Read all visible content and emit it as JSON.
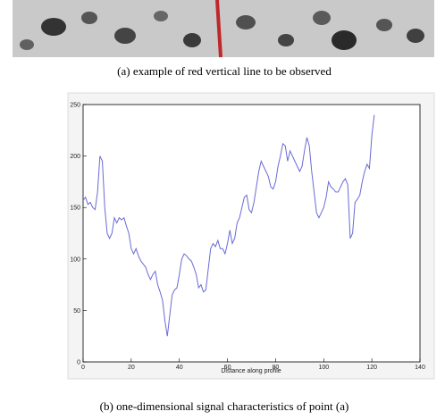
{
  "captions": {
    "a": "(a) example of red vertical line to be observed",
    "b": "(b) one-dimensional signal characteristics of point (a)"
  },
  "chart_data": {
    "type": "line",
    "xlabel": "Distance along profile",
    "x": [
      0,
      1,
      2,
      3,
      4,
      5,
      6,
      7,
      8,
      9,
      10,
      11,
      12,
      13,
      14,
      15,
      16,
      17,
      18,
      19,
      20,
      21,
      22,
      23,
      24,
      25,
      26,
      27,
      28,
      29,
      30,
      31,
      32,
      33,
      34,
      35,
      36,
      37,
      38,
      39,
      40,
      41,
      42,
      43,
      44,
      45,
      46,
      47,
      48,
      49,
      50,
      51,
      52,
      53,
      54,
      55,
      56,
      57,
      58,
      59,
      60,
      61,
      62,
      63,
      64,
      65,
      66,
      67,
      68,
      69,
      70,
      71,
      72,
      73,
      74,
      75,
      76,
      77,
      78,
      79,
      80,
      81,
      82,
      83,
      84,
      85,
      86,
      87,
      88,
      89,
      90,
      91,
      92,
      93,
      94,
      95,
      96,
      97,
      98,
      99,
      100,
      101,
      102,
      103,
      104,
      105,
      106,
      107,
      108,
      109,
      110,
      111,
      112,
      113,
      114,
      115,
      116,
      117,
      118,
      119,
      120,
      121
    ],
    "series": [
      {
        "color": "#6a6ad8",
        "values": [
          157,
          160,
          153,
          155,
          150,
          148,
          165,
          200,
          195,
          150,
          125,
          120,
          125,
          140,
          135,
          140,
          138,
          140,
          132,
          125,
          110,
          105,
          110,
          103,
          98,
          95,
          92,
          85,
          80,
          85,
          88,
          75,
          68,
          60,
          40,
          25,
          45,
          65,
          70,
          72,
          85,
          100,
          105,
          103,
          100,
          98,
          92,
          85,
          72,
          75,
          68,
          70,
          90,
          110,
          115,
          112,
          118,
          110,
          110,
          105,
          115,
          128,
          115,
          120,
          135,
          140,
          150,
          160,
          162,
          148,
          145,
          155,
          170,
          185,
          195,
          190,
          185,
          180,
          170,
          168,
          175,
          190,
          200,
          212,
          210,
          195,
          205,
          200,
          195,
          190,
          185,
          190,
          205,
          218,
          210,
          185,
          165,
          145,
          140,
          145,
          150,
          160,
          175,
          170,
          168,
          165,
          165,
          170,
          175,
          178,
          172,
          120,
          125,
          155,
          158,
          162,
          175,
          185,
          192,
          188,
          220,
          240
        ]
      }
    ],
    "xlim": [
      0,
      140
    ],
    "ylim": [
      0,
      250
    ],
    "xticks": [
      0,
      20,
      40,
      60,
      80,
      100,
      120,
      140
    ],
    "yticks": [
      0,
      50,
      100,
      150,
      200,
      250
    ],
    "grid": false
  }
}
